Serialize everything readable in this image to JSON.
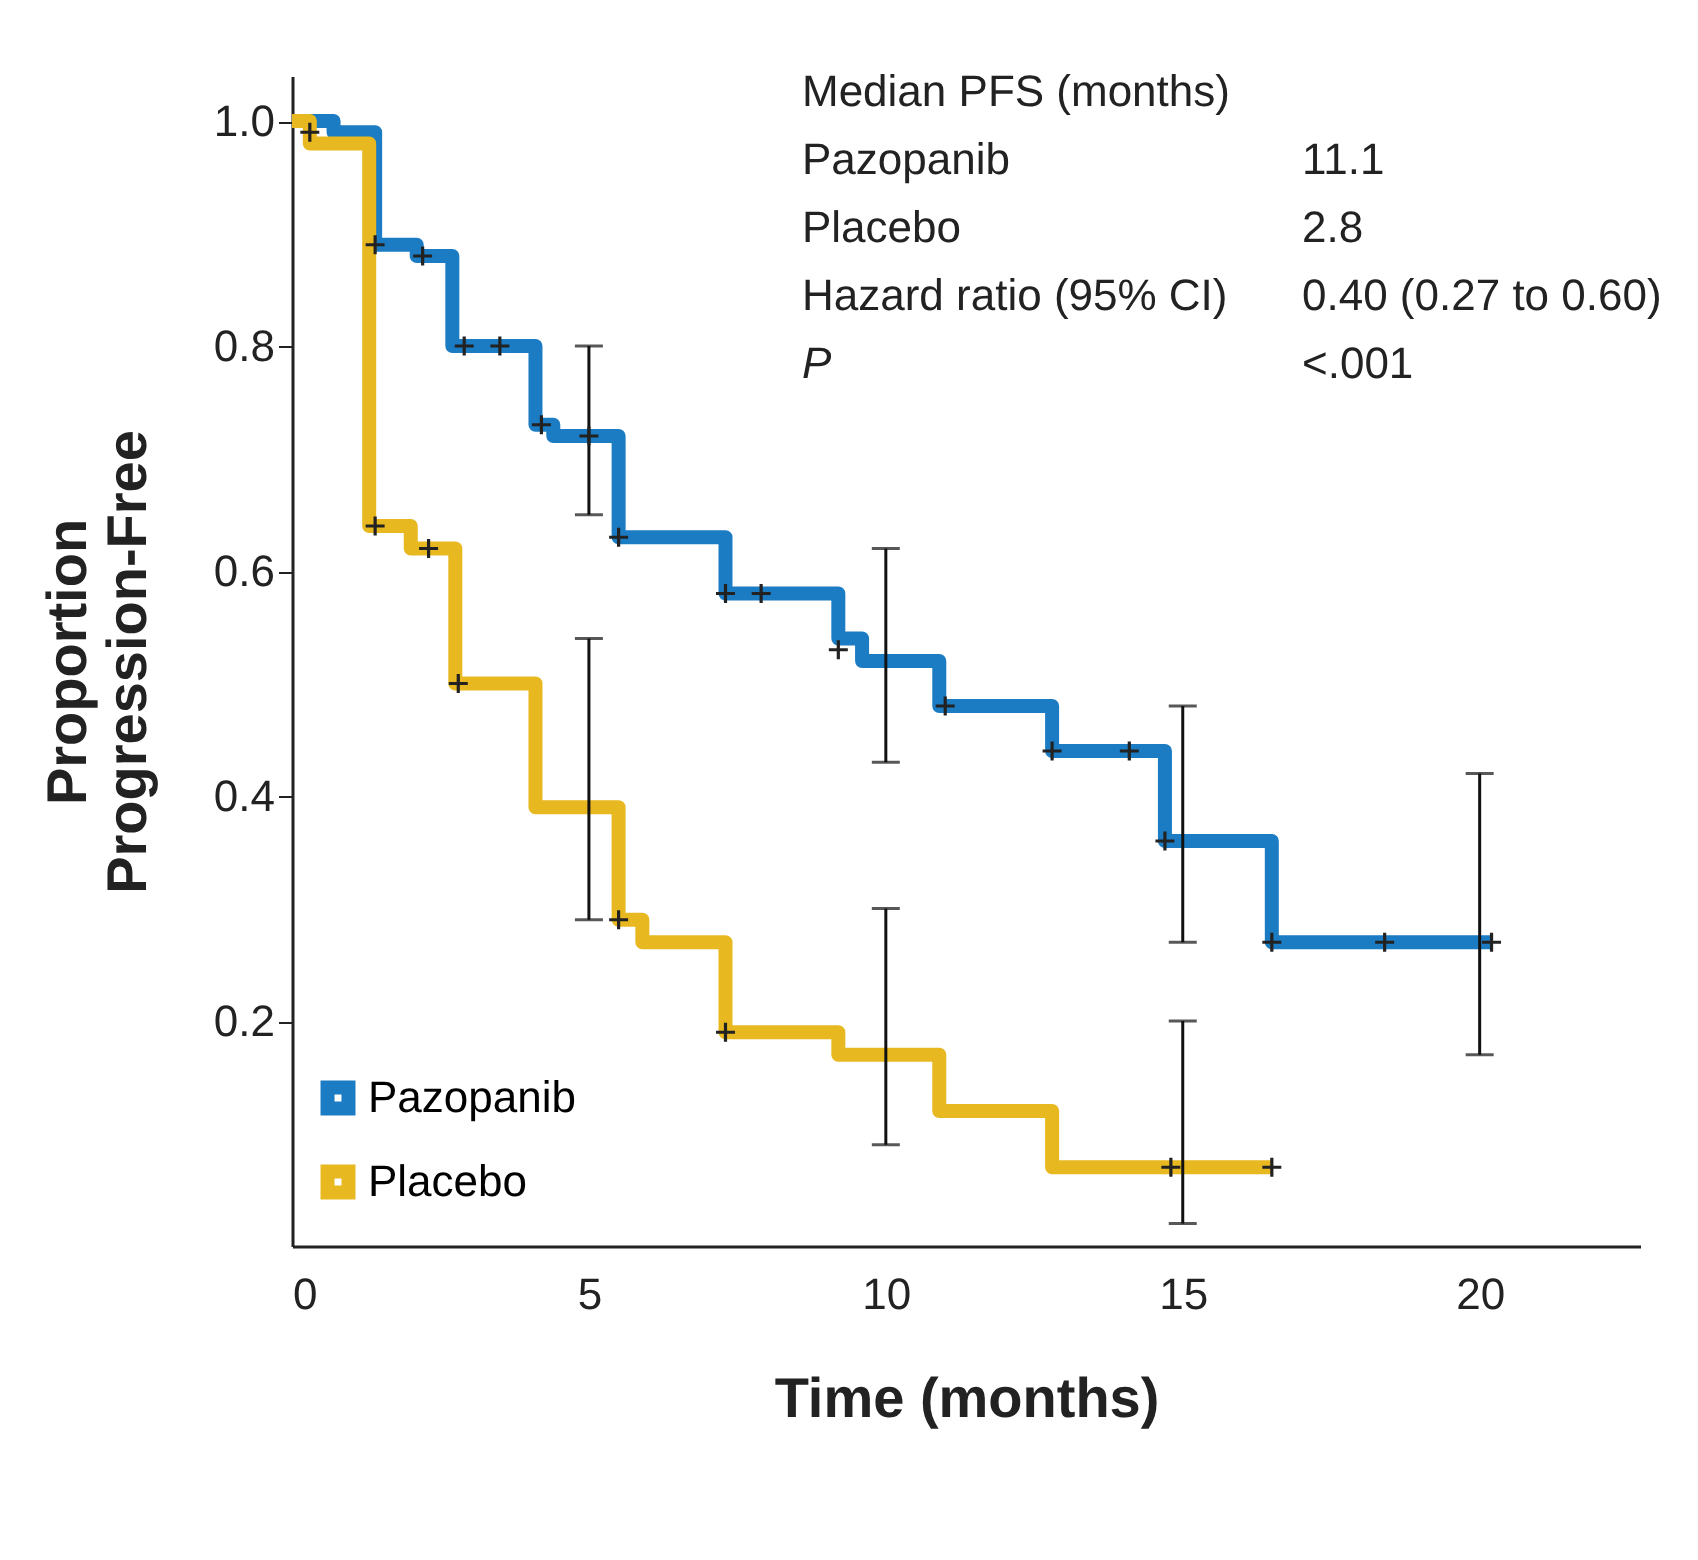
{
  "chart_data": {
    "type": "step",
    "xlabel": "Time (months)",
    "ylabel": "Proportion\nProgression-Free",
    "xlim": [
      0,
      22.7
    ],
    "ylim": [
      0,
      1.04
    ],
    "xticks": [
      0,
      5,
      10,
      15,
      20
    ],
    "yticks": [
      0.2,
      0.4,
      0.6,
      0.8,
      {
        "value": 1,
        "label": "1.0"
      }
    ],
    "grid": false,
    "legend": "bottom left",
    "line_style": "solid",
    "annotations": [
      "Median PFS (months)",
      "Pazopanib",
      "11.1",
      "Placebo",
      "2.8",
      "Hazard ratio (95% CI)",
      "0.40 (0.27 to 0.60)",
      "P",
      "<.001"
    ],
    "series": [
      {
        "name": "Pazopanib",
        "color": "#1b7cc4",
        "marker": "none",
        "x": [
          0,
          0.7,
          1.4,
          2.1,
          2.7,
          4.1,
          4.4,
          5,
          5.5,
          7.3,
          9.2,
          9.6,
          10,
          10.9,
          12.8,
          14.7,
          15,
          16.5,
          20,
          20.2
        ],
        "values": [
          1.0,
          0.99,
          0.89,
          0.88,
          0.8,
          0.73,
          0.72,
          0.72,
          0.63,
          0.58,
          0.54,
          0.52,
          0.52,
          0.48,
          0.44,
          0.36,
          0.36,
          0.27,
          0.27,
          0.27
        ],
        "errors": [
          null,
          null,
          null,
          null,
          null,
          null,
          null,
          [
            0.65,
            0.8
          ],
          null,
          null,
          null,
          null,
          [
            0.43,
            0.62
          ],
          null,
          null,
          null,
          [
            0.27,
            0.48
          ],
          null,
          [
            0.17,
            0.42
          ],
          null
        ]
      },
      {
        "name": "Placebo",
        "color": "#e8b820",
        "marker": "none",
        "x": [
          0,
          0.3,
          1.3,
          2.0,
          2.75,
          4.1,
          5,
          5.5,
          5.9,
          7.3,
          9.2,
          10,
          10.9,
          12.8,
          15,
          16.5
        ],
        "values": [
          1.0,
          0.98,
          0.64,
          0.62,
          0.5,
          0.39,
          0.39,
          0.29,
          0.27,
          0.19,
          0.17,
          0.17,
          0.12,
          0.07,
          0.07,
          0.07
        ],
        "errors": [
          null,
          null,
          null,
          null,
          null,
          null,
          [
            0.29,
            0.54
          ],
          null,
          null,
          null,
          null,
          [
            0.09,
            0.3
          ],
          null,
          null,
          [
            0.02,
            0.2
          ],
          null
        ]
      },
      {
        "type": "scatter",
        "color": "#222222",
        "marker": "cross",
        "x": [
          1.4,
          2.2,
          2.9,
          3.5,
          4.2,
          5.0,
          5.5,
          7.3,
          7.9,
          9.2,
          11.0,
          12.8,
          14.1,
          14.7,
          16.5,
          18.4,
          20.2
        ],
        "values": [
          0.89,
          0.88,
          0.8,
          0.8,
          0.73,
          0.72,
          0.63,
          0.58,
          0.58,
          0.53,
          0.48,
          0.44,
          0.44,
          0.36,
          0.27,
          0.27,
          0.27
        ]
      },
      {
        "type": "scatter",
        "color": "#222222",
        "marker": "cross",
        "x": [
          0.3,
          1.4,
          2.3,
          2.8,
          5.5,
          7.3,
          14.8,
          16.5
        ],
        "values": [
          0.99,
          0.64,
          0.62,
          0.5,
          0.29,
          0.19,
          0.07,
          0.07
        ]
      }
    ]
  }
}
